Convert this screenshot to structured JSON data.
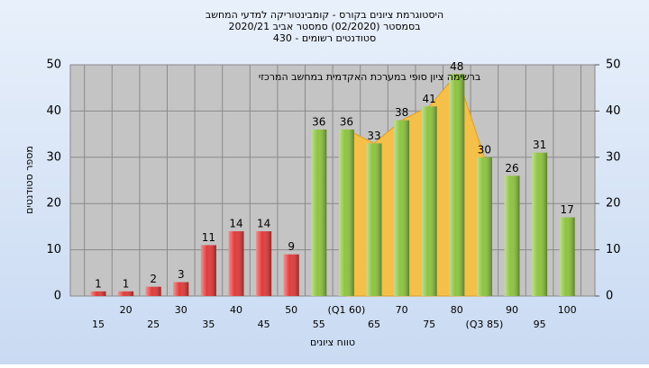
{
  "chart_data": {
    "type": "bar",
    "title": [
      "היסטוגרמת ציונים בקורס - קומבינטוריקה למדעי המחשב",
      "בסמסטר  (02/2020)  סמסטר אביב 2020/21",
      "סטודנטים רשומים - 430"
    ],
    "annotation": "ברשימה ציון סופי במערכת האקדמית במחשב המרכזי",
    "y_label": "מספר סטודנטים",
    "x_label": "טווח ציונים",
    "categories": [
      "15",
      "20",
      "25",
      "30",
      "35",
      "40",
      "45",
      "50",
      "55",
      "(Q1 60)",
      "65",
      "70",
      "75",
      "80",
      "(Q3 85)",
      "90",
      "95",
      "100"
    ],
    "values": [
      1,
      1,
      2,
      3,
      11,
      14,
      14,
      9,
      36,
      36,
      33,
      38,
      41,
      48,
      30,
      26,
      31,
      17
    ],
    "colors": [
      "#e23a3a",
      "#e23a3a",
      "#e23a3a",
      "#e23a3a",
      "#e23a3a",
      "#e23a3a",
      "#e23a3a",
      "#e23a3a",
      "#8dc43f",
      "#8dc43f",
      "#8dc43f",
      "#8dc43f",
      "#8dc43f",
      "#8dc43f",
      "#8dc43f",
      "#8dc43f",
      "#8dc43f",
      "#8dc43f"
    ],
    "ylim": [
      0,
      50
    ],
    "yticks": [
      0,
      10,
      20,
      30,
      40,
      50
    ],
    "y2lim": [
      0,
      50
    ],
    "y2ticks": [
      0,
      10,
      20,
      30,
      40,
      50
    ],
    "grid": true
  }
}
